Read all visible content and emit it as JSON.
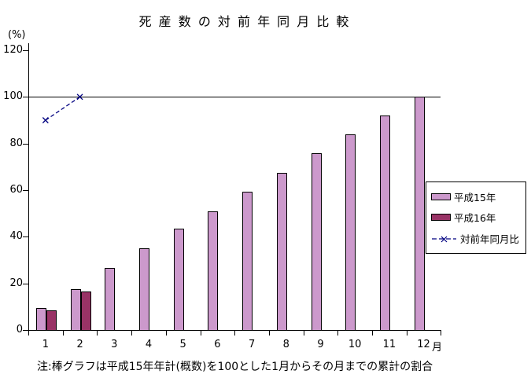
{
  "chart": {
    "title": "死 産 数 の 対 前 年 同 月 比 較",
    "y_unit_label": "(%)",
    "x_unit_label": "月",
    "note": "注:棒グラフは平成15年年計(概数)を100とした1月からその月までの累計の割合"
  },
  "legend": {
    "items": [
      {
        "label": "平成15年",
        "type": "box",
        "color": "#CC99CC"
      },
      {
        "label": "平成16年",
        "type": "box",
        "color": "#993366"
      },
      {
        "label": "対前年同月比",
        "type": "line",
        "color": "#000080"
      }
    ]
  },
  "chart_data": {
    "type": "bar",
    "title": "死産数の対前年同月比較",
    "xlabel": "月",
    "ylabel": "(%)",
    "categories": [
      "1",
      "2",
      "3",
      "4",
      "5",
      "6",
      "7",
      "8",
      "9",
      "10",
      "11",
      "12"
    ],
    "series": [
      {
        "name": "平成15年",
        "type": "bar",
        "color": "#CC99CC",
        "values": [
          9.5,
          17.5,
          26.5,
          35,
          43.5,
          51,
          59.5,
          67.5,
          76,
          84,
          92,
          100
        ]
      },
      {
        "name": "平成16年",
        "type": "bar",
        "color": "#993366",
        "values": [
          8.5,
          16.5,
          null,
          null,
          null,
          null,
          null,
          null,
          null,
          null,
          null,
          null
        ]
      },
      {
        "name": "対前年同月比",
        "type": "line",
        "color": "#000080",
        "marker": "x",
        "dashed": true,
        "values": [
          90,
          100,
          null,
          null,
          null,
          null,
          null,
          null,
          null,
          null,
          null,
          null
        ]
      }
    ],
    "ylim": [
      0,
      120
    ],
    "yticks": [
      0,
      20,
      40,
      60,
      80,
      100,
      120
    ],
    "reference_line_y": 100,
    "grid": false,
    "legend_position": "right",
    "annotation": "注:棒グラフは平成15年年計(概数)を100とした1月からその月までの累計の割合"
  }
}
